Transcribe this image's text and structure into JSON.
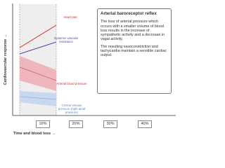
{
  "y_axis_label": "Cardiovascular response →",
  "x_axis_label": "Time and blood loss →",
  "x_markers": [
    "10%",
    "20%",
    "30%",
    "40%"
  ],
  "curves": [
    {
      "label": "Heart rate"
    },
    {
      "label": "Systemic vascular resistance"
    },
    {
      "label": "Arterial blood pressure"
    },
    {
      "label": "Central venous pressure (right atrial pressure)"
    }
  ],
  "info_box": {
    "title": "Arterial baroreceptor reflex",
    "paragraphs": [
      "The loss of arterial pressure which occurs with a smaller volume of blood loss results in the increase of sympathetic activity and a decrease in vagal activity.",
      "The resulting vasoconstriction and tachycardia maintain a sensible cardiac output."
    ]
  }
}
